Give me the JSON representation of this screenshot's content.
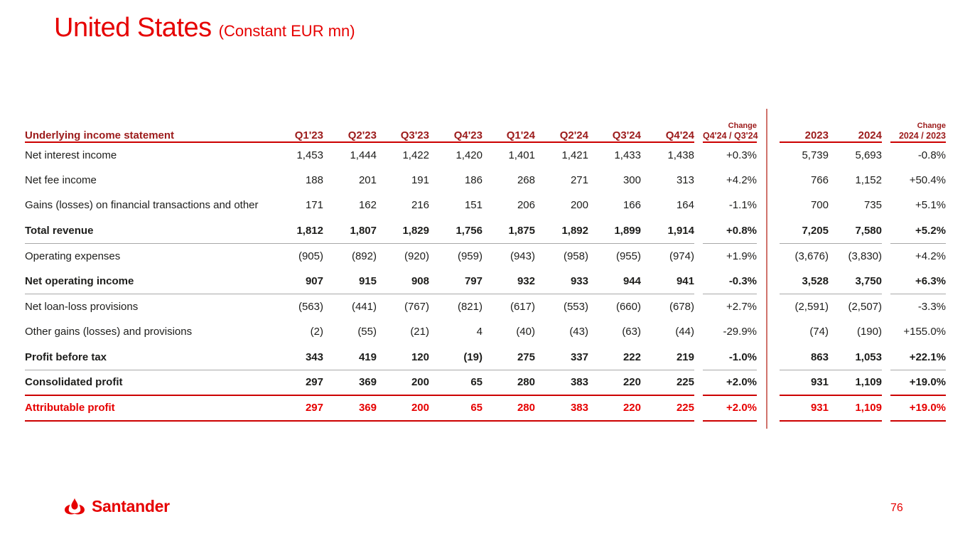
{
  "slide": {
    "title": "United States",
    "subtitle": "(Constant EUR mn)",
    "page_number": "76",
    "logo_text": "Santander"
  },
  "colors": {
    "bright_red": "#E60000",
    "dark_red": "#9C1B1B",
    "line_red": "#CC0000",
    "divider_red": "#D0736C",
    "gray_line": "#A8A8A8",
    "text_dark": "#1D1D1B"
  },
  "table": {
    "header": {
      "label": "Underlying income statement",
      "quarter_columns": [
        "Q1'23",
        "Q2'23",
        "Q3'23",
        "Q4'23",
        "Q1'24",
        "Q2'24",
        "Q3'24",
        "Q4'24"
      ],
      "qoq_change": {
        "line1": "Change",
        "line2": "Q4'24 / Q3'24"
      },
      "year_columns": [
        "2023",
        "2024"
      ],
      "yoy_change": {
        "line1": "Change",
        "line2": "2024 / 2023"
      }
    },
    "rows": [
      {
        "label": "Net interest income",
        "bold": false,
        "red": false,
        "separator": "none",
        "quarters": [
          "1,453",
          "1,444",
          "1,422",
          "1,420",
          "1,401",
          "1,421",
          "1,433",
          "1,438"
        ],
        "qoq": "+0.3%",
        "years": [
          "5,739",
          "5,693"
        ],
        "yoy": "-0.8%"
      },
      {
        "label": "Net fee income",
        "bold": false,
        "red": false,
        "separator": "none",
        "quarters": [
          "188",
          "201",
          "191",
          "186",
          "268",
          "271",
          "300",
          "313"
        ],
        "qoq": "+4.2%",
        "years": [
          "766",
          "1,152"
        ],
        "yoy": "+50.4%"
      },
      {
        "label": "Gains (losses) on financial transactions and other",
        "bold": false,
        "red": false,
        "separator": "none",
        "quarters": [
          "171",
          "162",
          "216",
          "151",
          "206",
          "200",
          "166",
          "164"
        ],
        "qoq": "-1.1%",
        "years": [
          "700",
          "735"
        ],
        "yoy": "+5.1%"
      },
      {
        "label": "Total revenue",
        "bold": true,
        "red": false,
        "separator": "gray",
        "quarters": [
          "1,812",
          "1,807",
          "1,829",
          "1,756",
          "1,875",
          "1,892",
          "1,899",
          "1,914"
        ],
        "qoq": "+0.8%",
        "years": [
          "7,205",
          "7,580"
        ],
        "yoy": "+5.2%"
      },
      {
        "label": "Operating expenses",
        "bold": false,
        "red": false,
        "separator": "none",
        "quarters": [
          "(905)",
          "(892)",
          "(920)",
          "(959)",
          "(943)",
          "(958)",
          "(955)",
          "(974)"
        ],
        "qoq": "+1.9%",
        "years": [
          "(3,676)",
          "(3,830)"
        ],
        "yoy": "+4.2%"
      },
      {
        "label": "Net operating income",
        "bold": true,
        "red": false,
        "separator": "gray",
        "quarters": [
          "907",
          "915",
          "908",
          "797",
          "932",
          "933",
          "944",
          "941"
        ],
        "qoq": "-0.3%",
        "years": [
          "3,528",
          "3,750"
        ],
        "yoy": "+6.3%"
      },
      {
        "label": "Net loan-loss provisions",
        "bold": false,
        "red": false,
        "separator": "none",
        "quarters": [
          "(563)",
          "(441)",
          "(767)",
          "(821)",
          "(617)",
          "(553)",
          "(660)",
          "(678)"
        ],
        "qoq": "+2.7%",
        "years": [
          "(2,591)",
          "(2,507)"
        ],
        "yoy": "-3.3%"
      },
      {
        "label": "Other gains (losses) and provisions",
        "bold": false,
        "red": false,
        "separator": "none",
        "quarters": [
          "(2)",
          "(55)",
          "(21)",
          "4",
          "(40)",
          "(43)",
          "(63)",
          "(44)"
        ],
        "qoq": "-29.9%",
        "years": [
          "(74)",
          "(190)"
        ],
        "yoy": "+155.0%"
      },
      {
        "label": "Profit before tax",
        "bold": true,
        "red": false,
        "separator": "gray",
        "quarters": [
          "343",
          "419",
          "120",
          "(19)",
          "275",
          "337",
          "222",
          "219"
        ],
        "qoq": "-1.0%",
        "years": [
          "863",
          "1,053"
        ],
        "yoy": "+22.1%"
      },
      {
        "label": "Consolidated profit",
        "bold": true,
        "red": false,
        "separator": "red",
        "quarters": [
          "297",
          "369",
          "200",
          "65",
          "280",
          "383",
          "220",
          "225"
        ],
        "qoq": "+2.0%",
        "years": [
          "931",
          "1,109"
        ],
        "yoy": "+19.0%"
      },
      {
        "label": "Attributable profit",
        "bold": true,
        "red": true,
        "separator": "red",
        "quarters": [
          "297",
          "369",
          "200",
          "65",
          "280",
          "383",
          "220",
          "225"
        ],
        "qoq": "+2.0%",
        "years": [
          "931",
          "1,109"
        ],
        "yoy": "+19.0%"
      }
    ]
  }
}
